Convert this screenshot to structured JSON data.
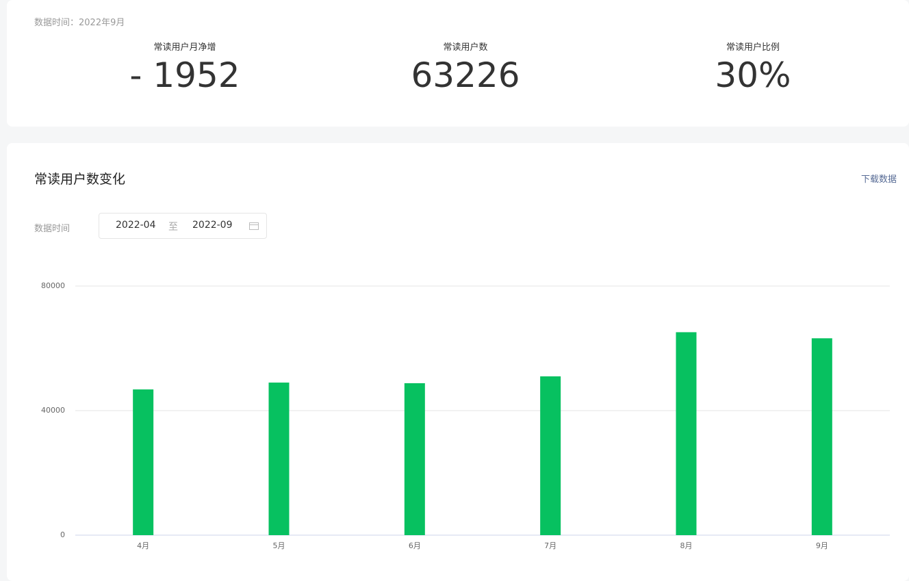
{
  "header": {
    "data_time": "数据时间：2022年9月",
    "stats": [
      {
        "label": "常读用户月净增",
        "value": "- 1952"
      },
      {
        "label": "常读用户数",
        "value": "63226"
      },
      {
        "label": "常读用户比例",
        "value": "30%"
      }
    ]
  },
  "filter": {
    "label": "数据时间",
    "start": "2022-04",
    "separator": "至",
    "end": "2022-09"
  },
  "download": "下载数据",
  "chart_data": {
    "type": "bar",
    "title": "常读用户数变化",
    "categories": [
      "4月",
      "5月",
      "6月",
      "7月",
      "8月",
      "9月"
    ],
    "values": [
      46800,
      49000,
      48800,
      51000,
      65178,
      63226
    ],
    "color": "#07c160",
    "ylim": [
      0,
      80000
    ],
    "yticks": [
      0,
      40000,
      80000
    ],
    "grid": true
  }
}
